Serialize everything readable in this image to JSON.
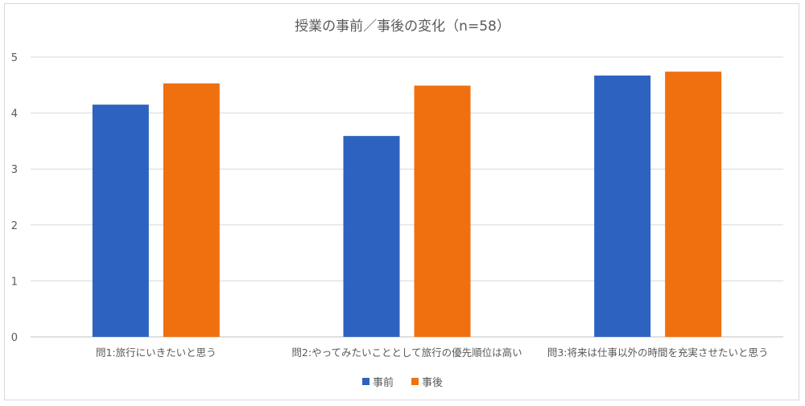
{
  "chart_data": {
    "type": "bar",
    "title": "授業の事前／事後の変化（n=58）",
    "categories": [
      "問1:旅行にいきたいと思う",
      "問2:やってみたいこととして旅行の優先順位は高い",
      "問3:将来は仕事以外の時間を充実させたいと思う"
    ],
    "series": [
      {
        "name": "事前",
        "values": [
          4.15,
          3.59,
          4.67
        ],
        "color": "#2e62c0"
      },
      {
        "name": "事後",
        "values": [
          4.53,
          4.49,
          4.74
        ],
        "color": "#f07010"
      }
    ],
    "ylim": [
      0,
      5
    ],
    "yticks": [
      "0",
      "1",
      "2",
      "3",
      "4",
      "5"
    ],
    "grid": true,
    "legend_position": "bottom"
  }
}
